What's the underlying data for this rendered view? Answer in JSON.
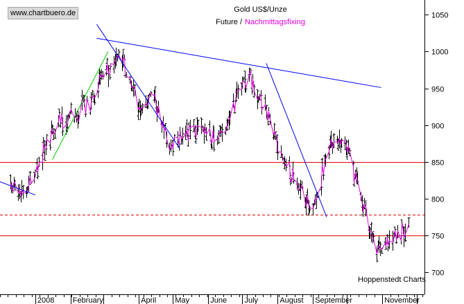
{
  "header": {
    "site": "www.chartbuero.de",
    "title": "Gold US$/Unze",
    "legend_future": "Future /",
    "legend_fixing": "Nachmittagsfixing"
  },
  "credit": "Hoppenstedt Charts",
  "colors": {
    "price_bars": "#000000",
    "fixing_line": "#e000e0",
    "horizontal_lines": "#e00000",
    "trend_lines": "#0000ff",
    "uptrend_line": "#00cc00",
    "axis": "#000000"
  },
  "chart_data": {
    "type": "line",
    "title": "Gold US$/Unze",
    "series": [
      {
        "name": "Future",
        "style": "ohlc-bars"
      },
      {
        "name": "Nachmittagsfixing",
        "style": "line"
      }
    ],
    "x": [
      "2007-12-10",
      "2007-12-24",
      "2008-01-07",
      "2008-01-21",
      "2008-02-04",
      "2008-02-18",
      "2008-03-03",
      "2008-03-17",
      "2008-03-31",
      "2008-04-14",
      "2008-04-28",
      "2008-05-12",
      "2008-05-26",
      "2008-06-09",
      "2008-06-23",
      "2008-07-07",
      "2008-07-21",
      "2008-08-04",
      "2008-08-18",
      "2008-09-01",
      "2008-09-15",
      "2008-09-29",
      "2008-10-13",
      "2008-10-27",
      "2008-11-10",
      "2008-11-24"
    ],
    "values": [
      815,
      810,
      860,
      905,
      915,
      930,
      975,
      990,
      930,
      935,
      870,
      885,
      890,
      880,
      930,
      965,
      920,
      860,
      820,
      790,
      870,
      880,
      800,
      735,
      740,
      770
    ],
    "xlim": [
      "2007-12-01",
      "2008-12-08"
    ],
    "x_ticks": [
      "2008",
      "February",
      "April",
      "May",
      "June",
      "July",
      "August",
      "September",
      "November"
    ],
    "ylim": [
      670,
      1070
    ],
    "y_ticks": [
      700,
      750,
      800,
      850,
      900,
      950,
      1000,
      1050
    ],
    "y_axis_side": "right",
    "grid": false,
    "horizontal_lines": [
      {
        "y": 850,
        "style": "solid",
        "color": "#e00000"
      },
      {
        "y": 778,
        "style": "dashed",
        "color": "#e00000"
      },
      {
        "y": 750,
        "style": "solid",
        "color": "#e00000"
      }
    ],
    "trend_lines": [
      {
        "from": [
          "2007-12-01",
          823
        ],
        "to": [
          "2008-01-01",
          805
        ],
        "color": "#0000ff"
      },
      {
        "from": [
          "2008-01-16",
          853
        ],
        "to": [
          "2008-03-05",
          1000
        ],
        "color": "#00cc00"
      },
      {
        "from": [
          "2008-02-24",
          1037
        ],
        "to": [
          "2008-05-07",
          868
        ],
        "color": "#0000ff"
      },
      {
        "from": [
          "2008-02-24",
          1018
        ],
        "to": [
          "2008-10-31",
          951
        ],
        "color": "#0000ff"
      },
      {
        "from": [
          "2008-07-22",
          984
        ],
        "to": [
          "2008-09-13",
          775
        ],
        "color": "#0000ff"
      }
    ]
  }
}
